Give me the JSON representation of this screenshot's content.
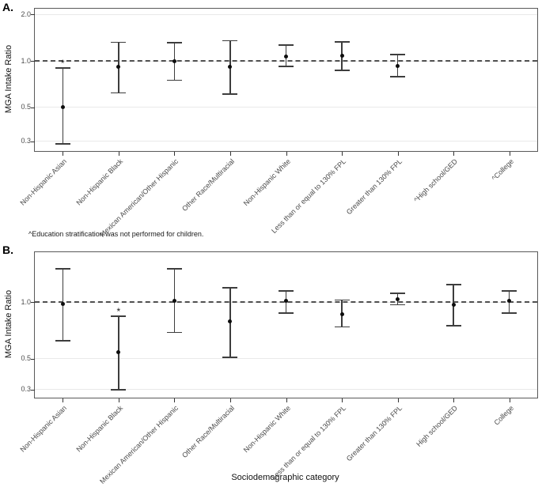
{
  "figure": {
    "panel_a_label": "A.",
    "panel_b_label": "B.",
    "y_axis_label": "MGA Intake Ratio",
    "x_axis_label": "Sociodemographic category",
    "footnote": "^Education stratification was not performed for children.",
    "significance_marker": "*",
    "colors": {
      "errorbar": "#3d3d3d",
      "point": "#0d0d0d",
      "reference_line": "#4f4f4f",
      "gridline": "#e9e9e9",
      "panel_border": "#595959",
      "tick_text": "#4d4d4d"
    }
  },
  "chart_data": [
    {
      "type": "scatter",
      "panel": "A",
      "ylabel": "MGA Intake Ratio",
      "xlabel": "",
      "scale": "log10",
      "ylim": [
        0.26,
        2.18
      ],
      "yticks": [
        2.0,
        1.0,
        0.5,
        0.3
      ],
      "ytick_labels": [
        "2.0",
        "1.0",
        "0.5",
        "0.3"
      ],
      "reference_line": 1.0,
      "grid": true,
      "legend": "none",
      "categories": [
        "Non-Hispanic Asian",
        "Non-Hispanic Black",
        "Mexican American/Other Hispanic",
        "Other Race/Multiracial",
        "Non-Hispanic White",
        "Less than or equal to 130% FPL",
        "Greater than 130% FPL",
        "^High school/GED",
        "^College"
      ],
      "points": [
        {
          "category": "Non-Hispanic Asian",
          "estimate": 0.5,
          "ci_low": 0.29,
          "ci_high": 0.9,
          "significant": true
        },
        {
          "category": "Non-Hispanic Black",
          "estimate": 0.91,
          "ci_low": 0.62,
          "ci_high": 1.32,
          "significant": false
        },
        {
          "category": "Mexican American/Other Hispanic",
          "estimate": 0.99,
          "ci_low": 0.75,
          "ci_high": 1.31,
          "significant": false
        },
        {
          "category": "Other Race/Multiracial",
          "estimate": 0.92,
          "ci_low": 0.61,
          "ci_high": 1.35,
          "significant": false
        },
        {
          "category": "Non-Hispanic White",
          "estimate": 1.07,
          "ci_low": 0.92,
          "ci_high": 1.27,
          "significant": false
        },
        {
          "category": "Less than or equal to 130% FPL",
          "estimate": 1.08,
          "ci_low": 0.87,
          "ci_high": 1.33,
          "significant": false
        },
        {
          "category": "Greater than 130% FPL",
          "estimate": 0.93,
          "ci_low": 0.79,
          "ci_high": 1.1,
          "significant": false
        },
        {
          "category": "^High school/GED",
          "estimate": null,
          "ci_low": null,
          "ci_high": null,
          "significant": false
        },
        {
          "category": "^College",
          "estimate": null,
          "ci_low": null,
          "ci_high": null,
          "significant": false
        }
      ]
    },
    {
      "type": "scatter",
      "panel": "B",
      "ylabel": "MGA Intake Ratio",
      "xlabel": "Sociodemographic category",
      "scale": "sqrt",
      "ylim": [
        0.26,
        1.58
      ],
      "yticks": [
        1.0,
        0.5,
        0.3
      ],
      "ytick_labels": [
        "1.0",
        "0.5",
        "0.3"
      ],
      "reference_line": 1.0,
      "grid": true,
      "legend": "none",
      "categories": [
        "Non-Hispanic Asian",
        "Non-Hispanic Black",
        "Mexican American/Other Hispanic",
        "Other Race/Multiracial",
        "Non-Hispanic White",
        "Less than or equal to 130% FPL",
        "Greater than 130% FPL",
        "High school/GED",
        "College"
      ],
      "points": [
        {
          "category": "Non-Hispanic Asian",
          "estimate": 0.98,
          "ci_low": 0.64,
          "ci_high": 1.37,
          "significant": false
        },
        {
          "category": "Non-Hispanic Black",
          "estimate": 0.55,
          "ci_low": 0.3,
          "ci_high": 0.86,
          "significant": true
        },
        {
          "category": "Mexican American/Other Hispanic",
          "estimate": 1.01,
          "ci_low": 0.71,
          "ci_high": 1.37,
          "significant": false
        },
        {
          "category": "Other Race/Multiracial",
          "estimate": 0.81,
          "ci_low": 0.51,
          "ci_high": 1.15,
          "significant": false
        },
        {
          "category": "Non-Hispanic White",
          "estimate": 1.01,
          "ci_low": 0.89,
          "ci_high": 1.12,
          "significant": false
        },
        {
          "category": "Less than or equal to 130% FPL",
          "estimate": 0.88,
          "ci_low": 0.76,
          "ci_high": 1.02,
          "significant": false
        },
        {
          "category": "Greater than 130% FPL",
          "estimate": 1.03,
          "ci_low": 0.97,
          "ci_high": 1.09,
          "significant": false
        },
        {
          "category": "High school/GED",
          "estimate": 0.97,
          "ci_low": 0.77,
          "ci_high": 1.19,
          "significant": false
        },
        {
          "category": "College",
          "estimate": 1.01,
          "ci_low": 0.89,
          "ci_high": 1.12,
          "significant": false
        }
      ]
    }
  ]
}
